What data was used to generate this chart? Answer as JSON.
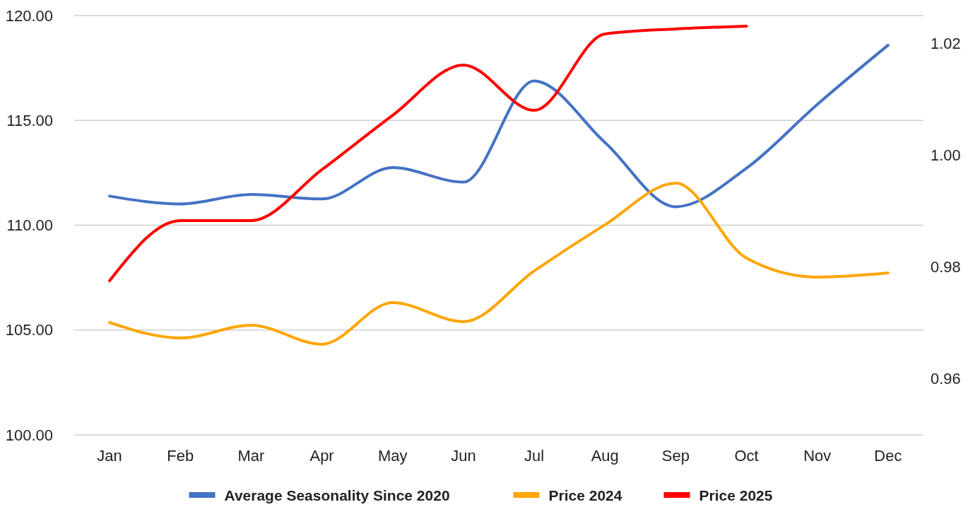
{
  "chart_data": {
    "type": "line",
    "categories": [
      "Jan",
      "Feb",
      "Mar",
      "Apr",
      "May",
      "Jun",
      "Jul",
      "Aug",
      "Sep",
      "Oct",
      "Nov",
      "Dec"
    ],
    "series": [
      {
        "name": "Average Seasonality Since 2020",
        "color": "#4472c4",
        "axis": "y2",
        "values": [
          0.9927,
          0.9913,
          0.993,
          0.9922,
          0.9978,
          0.9952,
          1.0133,
          1.0023,
          0.9908,
          0.9977,
          1.0091,
          1.0197
        ]
      },
      {
        "name": "Price 2024",
        "color": "#ffa500",
        "values": [
          105.36,
          104.62,
          105.23,
          104.32,
          106.31,
          105.4,
          107.82,
          110.02,
          112.01,
          108.43,
          107.52,
          107.72
        ]
      },
      {
        "name": "Price 2025",
        "color": "#ff0000",
        "values": [
          107.35,
          110.22,
          110.22,
          112.65,
          115.24,
          117.64,
          115.48,
          119.12,
          119.36,
          119.49,
          null,
          null
        ]
      }
    ],
    "ylim": [
      100,
      120
    ],
    "yticks": [
      {
        "value": 100,
        "label": "100.00"
      },
      {
        "value": 105,
        "label": "105.00"
      },
      {
        "value": 110,
        "label": "110.00"
      },
      {
        "value": 115,
        "label": "115.00"
      },
      {
        "value": 120,
        "label": "120.00"
      }
    ],
    "y2lim": [
      0.95,
      1.025
    ],
    "y2ticks": [
      {
        "value": 0.96,
        "label": "0.96"
      },
      {
        "value": 0.98,
        "label": "0.98"
      },
      {
        "value": 1.0,
        "label": "1.00"
      },
      {
        "value": 1.02,
        "label": "1.02"
      }
    ],
    "grid": "y",
    "legend": "bottom",
    "marker": "none",
    "line_style": "solid"
  }
}
